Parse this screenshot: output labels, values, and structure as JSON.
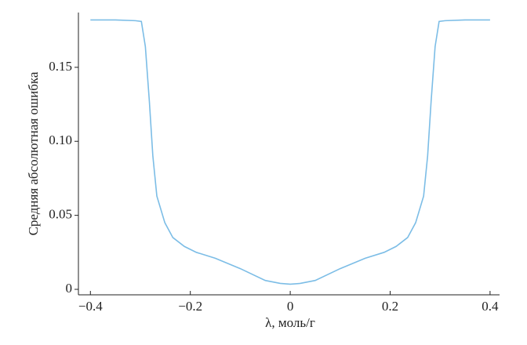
{
  "chart_data": {
    "type": "line",
    "x_label": "λ, моль/г",
    "y_label": "Средняя абсолютная ошибка",
    "x": [
      -0.4,
      -0.35,
      -0.31,
      -0.298,
      -0.29,
      -0.282,
      -0.275,
      -0.267,
      -0.251,
      -0.235,
      -0.212,
      -0.188,
      -0.15,
      -0.1,
      -0.05,
      -0.02,
      0,
      0.02,
      0.05,
      0.1,
      0.15,
      0.188,
      0.212,
      0.235,
      0.251,
      0.267,
      0.275,
      0.282,
      0.29,
      0.298,
      0.31,
      0.35,
      0.4
    ],
    "series": [
      {
        "color": "#7cbde6",
        "values": [
          0.182,
          0.182,
          0.1815,
          0.181,
          0.164,
          0.127,
          0.09,
          0.063,
          0.045,
          0.035,
          0.029,
          0.025,
          0.021,
          0.014,
          0.006,
          0.004,
          0.0035,
          0.004,
          0.006,
          0.014,
          0.021,
          0.025,
          0.029,
          0.035,
          0.045,
          0.063,
          0.09,
          0.127,
          0.164,
          0.181,
          0.1815,
          0.182,
          0.182
        ]
      }
    ],
    "xlim": [
      -0.424,
      0.419
    ],
    "ylim": [
      -0.0037,
      0.187
    ],
    "xticks": [
      {
        "value": -0.4,
        "label": "−0.4"
      },
      {
        "value": -0.2,
        "label": "−0.2"
      },
      0,
      0.2,
      0.4
    ],
    "yticks": [
      0,
      0.05,
      {
        "value": 0.1,
        "label": "0.10"
      },
      0.15
    ]
  }
}
